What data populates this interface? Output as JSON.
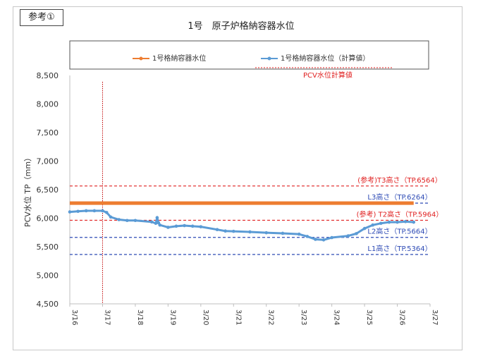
{
  "badge": "参考①",
  "chart_data": {
    "type": "line",
    "title": "1号　原子炉格納容器水位",
    "ylabel": "PCV水位 TP（mm）",
    "ylim": [
      4500,
      8500
    ],
    "yticks": [
      "4,500",
      "5,000",
      "5,500",
      "6,000",
      "6,500",
      "7,000",
      "7,500",
      "8,000",
      "8,500"
    ],
    "xlim": [
      "3/16",
      "3/27"
    ],
    "xticks": [
      "3/16",
      "3/17",
      "3/18",
      "3/19",
      "3/20",
      "3/21",
      "3/22",
      "3/23",
      "3/24",
      "3/25",
      "3/26",
      "3/27"
    ],
    "grid": false,
    "legend_position": "top",
    "legend": [
      {
        "label": "1号格納容器水位",
        "color": "#ED7D31"
      },
      {
        "label": "1号格納容器水位（計算値）",
        "color": "#5B9BD5"
      },
      {
        "label": "PCV水位計算値",
        "color": "#E02020"
      }
    ],
    "vertical_marker": {
      "x": "3/17",
      "color": "#C00000"
    },
    "reference_lines": [
      {
        "label": "(参考)T3高さ（TP.6564）",
        "value": 6564,
        "color": "#E02020"
      },
      {
        "label": "L3高さ（TP.6264）",
        "value": 6264,
        "color": "#2E4BB5"
      },
      {
        "label": "(参考) T2高さ（TP.5964）",
        "value": 5964,
        "color": "#E02020"
      },
      {
        "label": "L2高さ（TP.5664）",
        "value": 5664,
        "color": "#2E4BB5"
      },
      {
        "label": "L1高さ（TP.5364）",
        "value": 5364,
        "color": "#2E4BB5"
      }
    ],
    "series": [
      {
        "name": "1号格納容器水位",
        "color": "#ED7D31",
        "x": [
          "3/16",
          "3/26 12:00"
        ],
        "values": [
          6264,
          6264
        ]
      },
      {
        "name": "1号格納容器水位（計算値）",
        "color": "#5B9BD5",
        "x": [
          "3/16",
          "3/16 06:00",
          "3/16 12:00",
          "3/16 18:00",
          "3/17",
          "3/17 03:00",
          "3/17 06:00",
          "3/17 12:00",
          "3/17 18:00",
          "3/18",
          "3/18 12:00",
          "3/18 15:00",
          "3/18 16:00",
          "3/18 17:00",
          "3/18 18:00",
          "3/19",
          "3/19 06:00",
          "3/19 12:00",
          "3/19 18:00",
          "3/20",
          "3/20 12:00",
          "3/20 18:00",
          "3/21",
          "3/21 12:00",
          "3/22",
          "3/22 12:00",
          "3/23",
          "3/23 06:00",
          "3/23 12:00",
          "3/23 18:00",
          "3/24",
          "3/24 12:00",
          "3/24 18:00",
          "3/25",
          "3/25 06:00",
          "3/25 12:00",
          "3/25 18:00",
          "3/26",
          "3/26 06:00",
          "3/26 12:00"
        ],
        "values": [
          6110,
          6120,
          6130,
          6130,
          6130,
          6100,
          6020,
          5975,
          5960,
          5960,
          5935,
          5910,
          6010,
          5920,
          5880,
          5840,
          5860,
          5870,
          5860,
          5850,
          5800,
          5775,
          5770,
          5760,
          5745,
          5735,
          5720,
          5680,
          5630,
          5620,
          5660,
          5690,
          5730,
          5820,
          5880,
          5910,
          5930,
          5930,
          5940,
          5930
        ]
      }
    ]
  }
}
